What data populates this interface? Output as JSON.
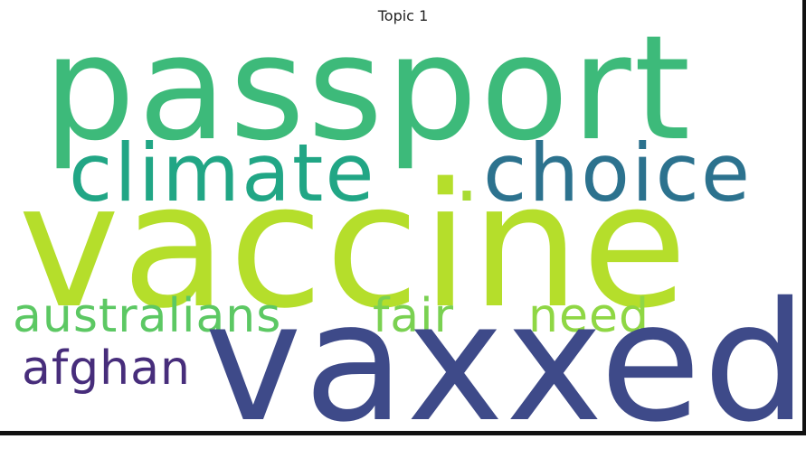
{
  "title": "Topic 1",
  "words": {
    "passport": {
      "text": "passport",
      "color": "#3dba7a"
    },
    "climate": {
      "text": "climate",
      "color": "#21a685"
    },
    "dot": {
      "text": ".",
      "color": "#a8db34"
    },
    "choice": {
      "text": "choice",
      "color": "#2c728e"
    },
    "vaccine": {
      "text": "vaccine",
      "color": "#b5de2b"
    },
    "australians": {
      "text": "australians",
      "color": "#5cc863"
    },
    "fair": {
      "text": "fair",
      "color": "#7ad151"
    },
    "need": {
      "text": "need",
      "color": "#8fd744"
    },
    "afghan": {
      "text": "afghan",
      "color": "#472d7b"
    },
    "vaxxed": {
      "text": "vaxxed",
      "color": "#3e4a89"
    }
  }
}
